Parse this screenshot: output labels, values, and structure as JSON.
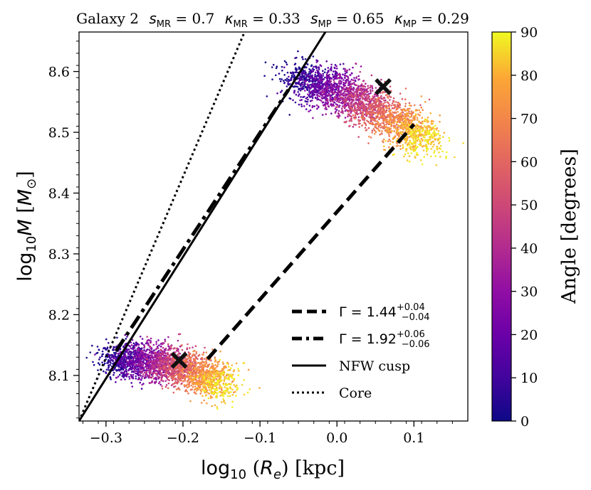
{
  "title": {
    "galaxy": "Galaxy 2",
    "s_mr": "0.7",
    "k_mr": "0.33",
    "s_mp": "0.65",
    "k_mp": "0.29"
  },
  "chart_data": {
    "type": "scatter",
    "xlabel": "log10 (Re) [kpc]",
    "ylabel": "log10 M [M⊙]",
    "xlim": [
      -0.335,
      0.17
    ],
    "ylim": [
      8.025,
      8.665
    ],
    "x_ticks": [
      "−0.3",
      "−0.2",
      "−0.1",
      "0.0",
      "0.1"
    ],
    "x_tick_values": [
      -0.3,
      -0.2,
      -0.1,
      0.0,
      0.1
    ],
    "y_ticks": [
      "8.1",
      "8.2",
      "8.3",
      "8.4",
      "8.5",
      "8.6"
    ],
    "y_tick_values": [
      8.1,
      8.2,
      8.3,
      8.4,
      8.5,
      8.6
    ],
    "colorbar": {
      "label": "Angle [degrees]",
      "range": [
        0,
        90
      ],
      "ticks": [
        "0",
        "10",
        "20",
        "30",
        "40",
        "50",
        "60",
        "70",
        "80",
        "90"
      ],
      "tick_values": [
        0,
        10,
        20,
        30,
        40,
        50,
        60,
        70,
        80,
        90
      ],
      "colormap": "plasma"
    },
    "clouds": [
      {
        "name": "upper",
        "angle0_center": [
          -0.05,
          8.59
        ],
        "angle90_center": [
          0.115,
          8.485
        ],
        "spread_x": 0.017,
        "spread_y": 0.016
      },
      {
        "name": "lower",
        "angle0_center": [
          -0.29,
          8.125
        ],
        "angle90_center": [
          -0.145,
          8.085
        ],
        "spread_x": 0.014,
        "spread_y": 0.015
      }
    ],
    "markers": [
      {
        "x": -0.205,
        "y": 8.125
      },
      {
        "x": 0.06,
        "y": 8.575
      }
    ],
    "lines": [
      {
        "style": "dashed",
        "x": [
          -0.168,
          0.1
        ],
        "y": [
          8.127,
          8.513
        ]
      },
      {
        "style": "dashdot",
        "x": [
          -0.287,
          -0.063
        ],
        "y": [
          8.14,
          8.57
        ]
      },
      {
        "style": "solid",
        "x": [
          -0.335,
          -0.015
        ],
        "y": [
          8.025,
          8.665
        ]
      },
      {
        "style": "dotted",
        "x": [
          -0.335,
          -0.12
        ],
        "y": [
          8.025,
          8.665
        ]
      }
    ],
    "legend": {
      "location": "lower-right",
      "entries": [
        {
          "style": "dashed",
          "gamma": "1.44",
          "sup": "+0.04",
          "sub": "−0.04"
        },
        {
          "style": "dashdot",
          "gamma": "1.92",
          "sup": "+0.06",
          "sub": "−0.06"
        },
        {
          "style": "solid",
          "label": "NFW cusp"
        },
        {
          "style": "dotted",
          "label": "Core"
        }
      ]
    }
  },
  "colors": {
    "axis": "#000000",
    "marker": "#111111",
    "line": "#000000"
  }
}
